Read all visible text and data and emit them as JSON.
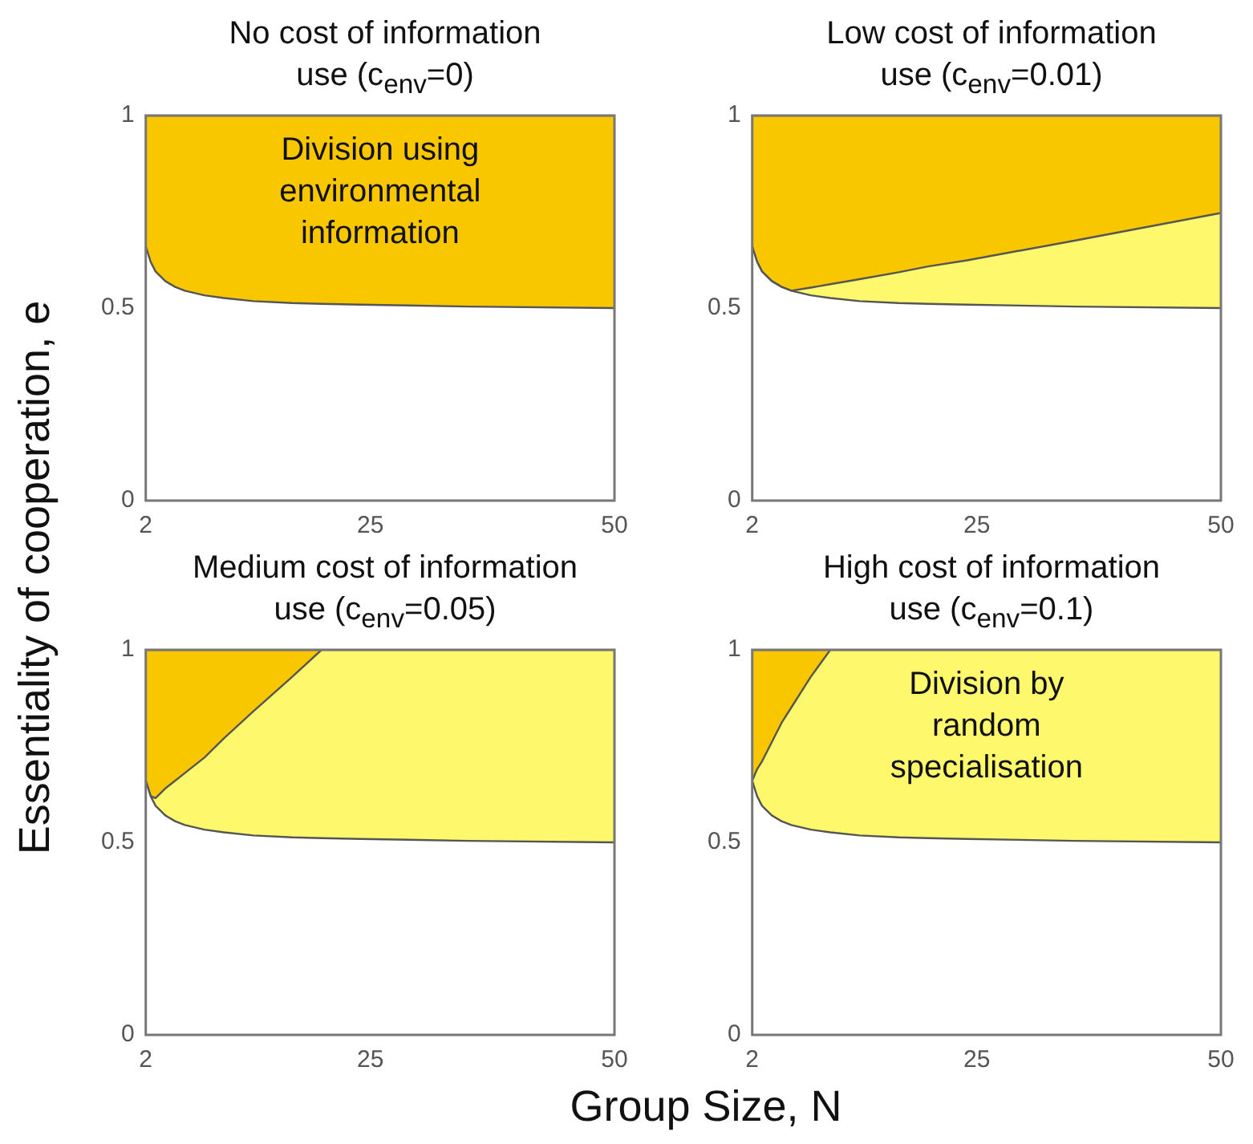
{
  "chart_data": [
    {
      "type": "area",
      "title": "No cost of information use (c$_{env}$=0)",
      "ylabel": "Essentiality of cooperation, e",
      "xlabel": "Group Size, N",
      "stacked": true,
      "x": [
        2,
        2.5,
        3,
        4,
        5,
        6,
        8,
        10,
        13,
        17,
        20,
        24,
        35,
        50
      ],
      "series": [
        {
          "color": "#ffffff",
          "values": [
            0.66,
            0.62,
            0.595,
            0.57,
            0.555,
            0.545,
            0.533,
            0.526,
            0.518,
            0.513,
            0.511,
            0.509,
            0.504,
            0.5
          ]
        },
        {
          "color": "#f8c700",
          "values": [
            0.34,
            0.38,
            0.405,
            0.43,
            0.445,
            0.455,
            0.467,
            0.474,
            0.482,
            0.487,
            0.489,
            0.491,
            0.496,
            0.5
          ]
        }
      ],
      "annotations": [
        "Division using environmental information"
      ],
      "xlim": [
        2,
        50
      ],
      "xticks": [
        2,
        25,
        50
      ],
      "ylim": [
        0,
        1
      ],
      "yticks": [
        0,
        0.5,
        1
      ]
    },
    {
      "type": "area",
      "title": "Low cost of information use (c$_{env}$=0.01)",
      "stacked": true,
      "x": [
        2,
        2.5,
        3,
        4,
        5,
        6,
        8,
        10,
        13,
        17,
        20,
        24,
        35,
        50
      ],
      "series": [
        {
          "color": "#ffffff",
          "values": [
            0.66,
            0.62,
            0.595,
            0.57,
            0.555,
            0.545,
            0.533,
            0.526,
            0.518,
            0.513,
            0.511,
            0.509,
            0.504,
            0.5
          ]
        },
        {
          "color": "#fef86c",
          "values": [
            0,
            0,
            0,
            0,
            0,
            0,
            0.02,
            0.036,
            0.057,
            0.08,
            0.097,
            0.115,
            0.171,
            0.247
          ]
        },
        {
          "color": "#f8c700",
          "values": [
            0.34,
            0.38,
            0.405,
            0.43,
            0.445,
            0.455,
            0.447,
            0.438,
            0.425,
            0.407,
            0.392,
            0.376,
            0.325,
            0.253
          ]
        }
      ],
      "xlim": [
        2,
        50
      ],
      "xticks": [
        2,
        25,
        50
      ],
      "ylim": [
        0,
        1
      ],
      "yticks": [
        0,
        0.5,
        1
      ]
    },
    {
      "type": "area",
      "title": "Medium cost of information use (c$_{env}$=0.05)",
      "stacked": true,
      "x": [
        2,
        2.5,
        3,
        4,
        5,
        6,
        8,
        10,
        13,
        17,
        20,
        24,
        35,
        50
      ],
      "series": [
        {
          "color": "#ffffff",
          "values": [
            0.66,
            0.62,
            0.595,
            0.57,
            0.555,
            0.545,
            0.533,
            0.526,
            0.518,
            0.513,
            0.511,
            0.509,
            0.504,
            0.5
          ]
        },
        {
          "color": "#fef86c",
          "values": [
            0,
            0,
            0.02,
            0.07,
            0.105,
            0.135,
            0.187,
            0.244,
            0.322,
            0.417,
            0.489,
            0.491,
            0.496,
            0.5
          ]
        },
        {
          "color": "#f8c700",
          "values": [
            0.34,
            0.38,
            0.385,
            0.36,
            0.34,
            0.32,
            0.28,
            0.23,
            0.16,
            0.07,
            0,
            0,
            0,
            0
          ]
        }
      ],
      "xlim": [
        2,
        50
      ],
      "xticks": [
        2,
        25,
        50
      ],
      "ylim": [
        0,
        1
      ],
      "yticks": [
        0,
        0.5,
        1
      ]
    },
    {
      "type": "area",
      "title": "High cost of information use (c$_{env}$=0.1)",
      "stacked": true,
      "x": [
        2,
        2.5,
        3,
        4,
        5,
        6,
        8,
        10,
        13,
        17,
        20,
        24,
        35,
        50
      ],
      "series": [
        {
          "color": "#ffffff",
          "values": [
            0.66,
            0.62,
            0.595,
            0.57,
            0.555,
            0.545,
            0.533,
            0.526,
            0.518,
            0.513,
            0.511,
            0.509,
            0.504,
            0.5
          ]
        },
        {
          "color": "#fef86c",
          "values": [
            0,
            0.07,
            0.115,
            0.19,
            0.255,
            0.305,
            0.397,
            0.474,
            0.482,
            0.487,
            0.489,
            0.491,
            0.496,
            0.5
          ]
        },
        {
          "color": "#f8c700",
          "values": [
            0.34,
            0.31,
            0.29,
            0.24,
            0.19,
            0.15,
            0.07,
            0,
            0,
            0,
            0,
            0,
            0,
            0
          ]
        }
      ],
      "annotations": [
        "Division by random specialisation"
      ],
      "xlim": [
        2,
        50
      ],
      "xticks": [
        2,
        25,
        50
      ],
      "ylim": [
        0,
        1
      ],
      "yticks": [
        0,
        0.5,
        1
      ]
    }
  ]
}
